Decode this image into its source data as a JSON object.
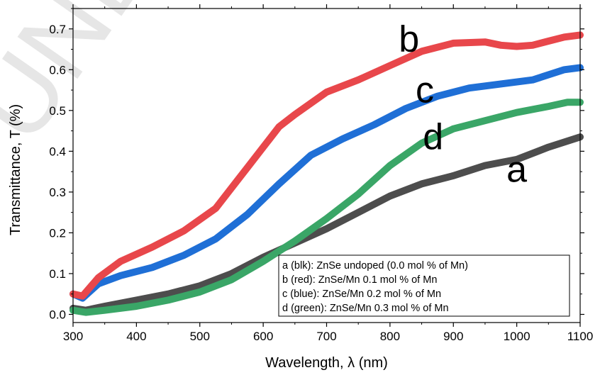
{
  "chart_data": {
    "type": "line",
    "xlabel": "Wavelength, λ (nm)",
    "ylabel": "Transmittance, T (%)",
    "xlim": [
      300,
      1100
    ],
    "ylim": [
      -0.02,
      0.75
    ],
    "xticks": [
      300,
      400,
      500,
      600,
      700,
      800,
      900,
      1000,
      1100
    ],
    "yticks": [
      0.0,
      0.1,
      0.2,
      0.3,
      0.4,
      0.5,
      0.6,
      0.7
    ],
    "ytick_labels": [
      "0.0",
      "0.1",
      "0.2",
      "0.3",
      "0.4",
      "0.5",
      "0.6",
      "0.7"
    ],
    "legend_position": "bottom-right",
    "watermark": "UNDER",
    "series": [
      {
        "name": "a",
        "legend": "a (blk): ZnSe undoped (0.0 mol % of Mn)",
        "color": "#4d4d4d",
        "x": [
          300,
          320,
          350,
          400,
          450,
          500,
          550,
          600,
          650,
          700,
          750,
          800,
          850,
          900,
          950,
          1000,
          1050,
          1100
        ],
        "y": [
          0.015,
          0.01,
          0.02,
          0.035,
          0.05,
          0.07,
          0.1,
          0.14,
          0.175,
          0.21,
          0.25,
          0.29,
          0.32,
          0.34,
          0.365,
          0.38,
          0.41,
          0.435
        ]
      },
      {
        "name": "b",
        "legend": "b (red): ZnSe/Mn 0.1 mol % of Mn",
        "color": "#e8474b",
        "x": [
          300,
          315,
          340,
          375,
          425,
          475,
          525,
          575,
          625,
          650,
          700,
          750,
          800,
          850,
          900,
          950,
          975,
          1000,
          1025,
          1050,
          1075,
          1100
        ],
        "y": [
          0.05,
          0.045,
          0.09,
          0.13,
          0.165,
          0.205,
          0.26,
          0.36,
          0.46,
          0.49,
          0.545,
          0.575,
          0.61,
          0.645,
          0.665,
          0.668,
          0.66,
          0.657,
          0.66,
          0.67,
          0.68,
          0.685
        ]
      },
      {
        "name": "c",
        "legend": "c (blue): ZnSe/Mn 0.2 mol % of Mn",
        "color": "#1f6fd6",
        "x": [
          300,
          315,
          340,
          375,
          425,
          475,
          525,
          575,
          625,
          675,
          725,
          775,
          825,
          875,
          925,
          975,
          1025,
          1075,
          1100
        ],
        "y": [
          0.05,
          0.04,
          0.075,
          0.095,
          0.115,
          0.145,
          0.185,
          0.245,
          0.32,
          0.39,
          0.43,
          0.465,
          0.505,
          0.535,
          0.555,
          0.565,
          0.575,
          0.6,
          0.605
        ]
      },
      {
        "name": "d",
        "legend": "d (green): ZnSe/Mn 0.3 mol % of Mn",
        "color": "#3aa667",
        "x": [
          300,
          320,
          350,
          400,
          450,
          500,
          550,
          600,
          650,
          700,
          750,
          800,
          850,
          900,
          950,
          1000,
          1050,
          1080,
          1100
        ],
        "y": [
          0.01,
          0.005,
          0.01,
          0.02,
          0.035,
          0.055,
          0.085,
          0.13,
          0.18,
          0.235,
          0.295,
          0.365,
          0.42,
          0.455,
          0.475,
          0.495,
          0.51,
          0.52,
          0.52
        ]
      }
    ],
    "curve_labels": [
      {
        "text": "b",
        "x": 830,
        "y": 0.645
      },
      {
        "text": "c",
        "x": 855,
        "y": 0.52
      },
      {
        "text": "d",
        "x": 868,
        "y": 0.405
      },
      {
        "text": "a",
        "x": 1000,
        "y": 0.325
      }
    ]
  }
}
